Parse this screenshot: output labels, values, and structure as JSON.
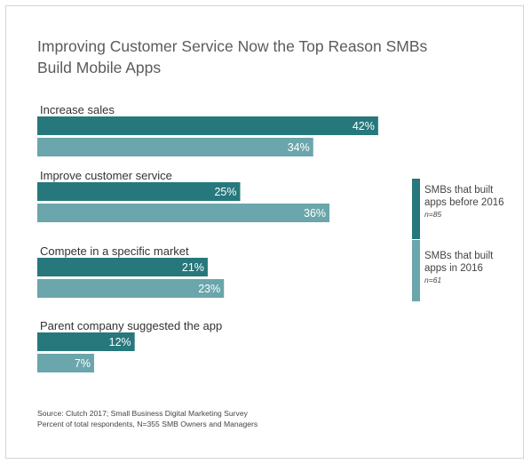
{
  "chart_data": {
    "type": "bar",
    "orientation": "horizontal",
    "title": "Improving Customer Service Now the Top Reason SMBs Build Mobile Apps",
    "categories": [
      "Increase sales",
      "Improve customer service",
      "Compete in a specific market",
      "Parent company suggested the app"
    ],
    "series": [
      {
        "name": "SMBs that built apps before 2016",
        "note": "n=85",
        "color": "#26787c",
        "values": [
          42,
          25,
          21,
          12
        ],
        "labels": [
          "42%",
          "25%",
          "21%",
          "12%"
        ]
      },
      {
        "name": "SMBs that built apps in 2016",
        "note": "n=61",
        "color": "#6aa6ab",
        "values": [
          34,
          36,
          23,
          7
        ],
        "labels": [
          "34%",
          "36%",
          "23%",
          "7%"
        ]
      }
    ],
    "xlim": [
      0,
      45
    ],
    "grid": false,
    "legend_position": "right"
  },
  "source": {
    "line1": "Source: Clutch 2017; Small Business Digital Marketing Survey",
    "line2": "Percent of total respondents, N=355 SMB Owners and Managers"
  }
}
